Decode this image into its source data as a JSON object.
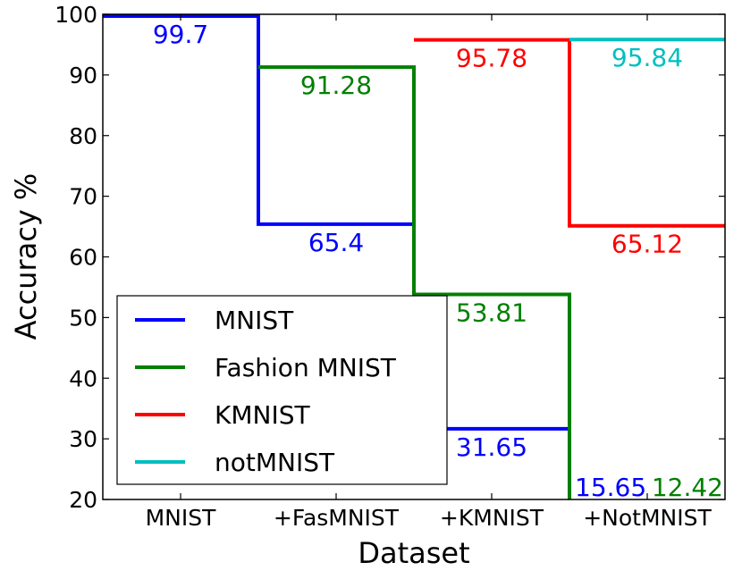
{
  "chart_data": {
    "type": "line",
    "subtype": "step",
    "title": "",
    "xlabel": "Dataset",
    "ylabel": "Accuracy %",
    "categories": [
      "MNIST",
      "+FasMNIST",
      "+KMNIST",
      "+NotMNIST"
    ],
    "ylim": [
      20,
      100
    ],
    "yticks": [
      20,
      30,
      40,
      50,
      60,
      70,
      80,
      90,
      100
    ],
    "grid": false,
    "legend_position": "lower-left",
    "series": [
      {
        "name": "MNIST",
        "color": "#0000ff",
        "values": [
          99.7,
          65.4,
          31.65,
          15.65
        ],
        "labels": [
          "99.7",
          "65.4",
          "31.65",
          "15.65"
        ]
      },
      {
        "name": "Fashion MNIST",
        "color": "#008000",
        "values": [
          null,
          91.28,
          53.81,
          12.42
        ],
        "labels": [
          "",
          "91.28",
          "53.81",
          "12.42"
        ]
      },
      {
        "name": "KMNIST",
        "color": "#ff0000",
        "values": [
          null,
          null,
          95.78,
          65.12
        ],
        "labels": [
          "",
          "",
          "95.78",
          "65.12"
        ]
      },
      {
        "name": "notMNIST",
        "color": "#00bfbf",
        "values": [
          null,
          null,
          null,
          95.84
        ],
        "labels": [
          "",
          "",
          "",
          "95.84"
        ]
      }
    ]
  }
}
